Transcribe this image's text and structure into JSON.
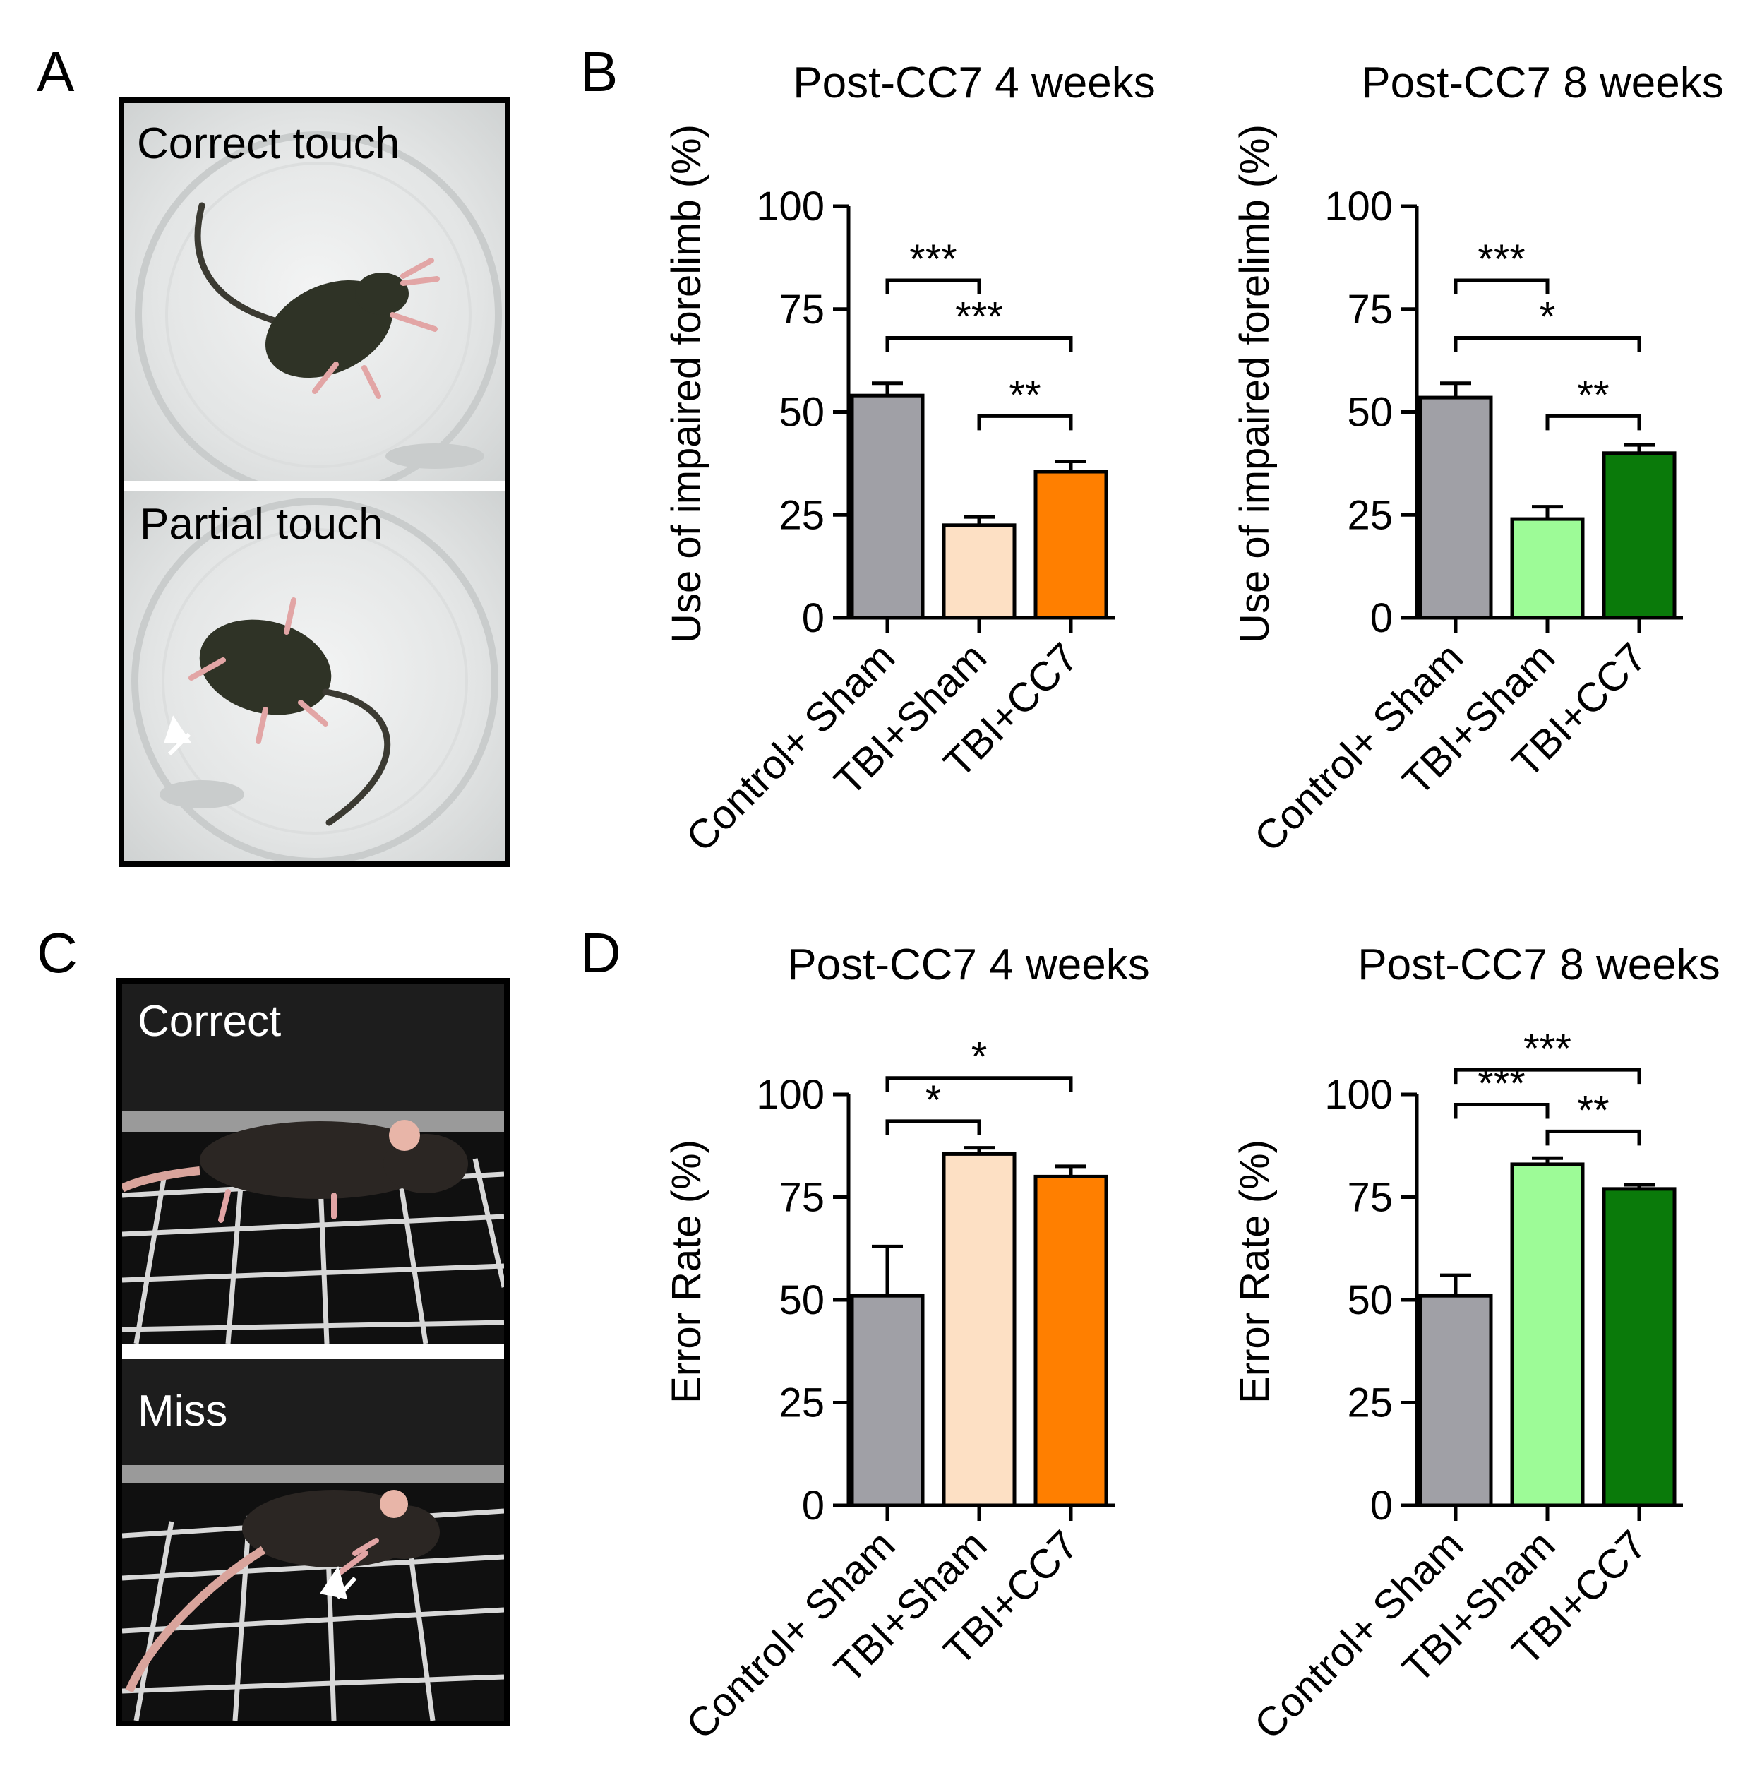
{
  "panels": {
    "a": {
      "letter": "A",
      "top_label": "Correct touch",
      "bottom_label": "Partial touch"
    },
    "b": {
      "letter": "B"
    },
    "c": {
      "letter": "C",
      "top_label": "Correct",
      "bottom_label": "Miss"
    },
    "d": {
      "letter": "D"
    }
  },
  "colors": {
    "control_sham": "#a0a0a6",
    "tbi_sham_4w": "#fde0c4",
    "tbi_cc7_4w": "#ff7f00",
    "tbi_sham_8w": "#9dfb97",
    "tbi_cc7_8w": "#0a7a0a",
    "axis": "#000000"
  },
  "chart_data": [
    {
      "id": "B1",
      "type": "bar",
      "title": "Post-CC7 4 weeks",
      "ylabel": "Use of impaired forelimb (%)",
      "ylim": [
        0,
        100
      ],
      "yticks": [
        "0",
        "25",
        "50",
        "75",
        "100"
      ],
      "ytick_values": [
        0,
        25,
        50,
        75,
        100
      ],
      "categories": [
        "Control+ Sham",
        "TBI+Sham",
        "TBI+CC7"
      ],
      "values": [
        54,
        22.5,
        35.5
      ],
      "errors": [
        3,
        2,
        2.5
      ],
      "color_keys": [
        "control_sham",
        "tbi_sham_4w",
        "tbi_cc7_4w"
      ],
      "significance": [
        {
          "from": 0,
          "to": 1,
          "label": "***",
          "level": 82
        },
        {
          "from": 0,
          "to": 2,
          "label": "***",
          "level": 68
        },
        {
          "from": 1,
          "to": 2,
          "label": "**",
          "level": 49
        }
      ]
    },
    {
      "id": "B2",
      "type": "bar",
      "title": "Post-CC7 8 weeks",
      "ylabel": "Use of impaired forelimb (%)",
      "ylim": [
        0,
        100
      ],
      "yticks": [
        "0",
        "25",
        "50",
        "75",
        "100"
      ],
      "ytick_values": [
        0,
        25,
        50,
        75,
        100
      ],
      "categories": [
        "Control+ Sham",
        "TBI+Sham",
        "TBI+CC7"
      ],
      "values": [
        53.5,
        24,
        40
      ],
      "errors": [
        3.5,
        3,
        2
      ],
      "color_keys": [
        "control_sham",
        "tbi_sham_8w",
        "tbi_cc7_8w"
      ],
      "significance": [
        {
          "from": 0,
          "to": 1,
          "label": "***",
          "level": 82
        },
        {
          "from": 0,
          "to": 2,
          "label": "*",
          "level": 68
        },
        {
          "from": 1,
          "to": 2,
          "label": "**",
          "level": 49
        }
      ]
    },
    {
      "id": "D1",
      "type": "bar",
      "title": "Post-CC7 4 weeks",
      "ylabel": "Error Rate (%)",
      "ylim": [
        0,
        100
      ],
      "yticks": [
        "0",
        "25",
        "50",
        "75",
        "100"
      ],
      "ytick_values": [
        0,
        25,
        50,
        75,
        100
      ],
      "categories": [
        "Control+ Sham",
        "TBI+Sham",
        "TBI+CC7"
      ],
      "values": [
        51,
        85.5,
        80
      ],
      "errors": [
        12,
        1.5,
        2.5
      ],
      "color_keys": [
        "control_sham",
        "tbi_sham_4w",
        "tbi_cc7_4w"
      ],
      "significance": [
        {
          "from": 0,
          "to": 1,
          "label": "*",
          "level": 93.5
        },
        {
          "from": 0,
          "to": 2,
          "label": "*",
          "level": 104
        }
      ]
    },
    {
      "id": "D2",
      "type": "bar",
      "title": "Post-CC7 8 weeks",
      "ylabel": "Error Rate (%)",
      "ylim": [
        0,
        100
      ],
      "yticks": [
        "0",
        "25",
        "50",
        "75",
        "100"
      ],
      "ytick_values": [
        0,
        25,
        50,
        75,
        100
      ],
      "categories": [
        "Control+ Sham",
        "TBI+Sham",
        "TBI+CC7"
      ],
      "values": [
        51,
        83,
        77
      ],
      "errors": [
        5,
        1.5,
        1
      ],
      "color_keys": [
        "control_sham",
        "tbi_sham_8w",
        "tbi_cc7_8w"
      ],
      "significance": [
        {
          "from": 0,
          "to": 2,
          "label": "***",
          "level": 106
        },
        {
          "from": 0,
          "to": 1,
          "label": "***",
          "level": 97.5
        },
        {
          "from": 1,
          "to": 2,
          "label": "**",
          "level": 91
        }
      ]
    }
  ]
}
